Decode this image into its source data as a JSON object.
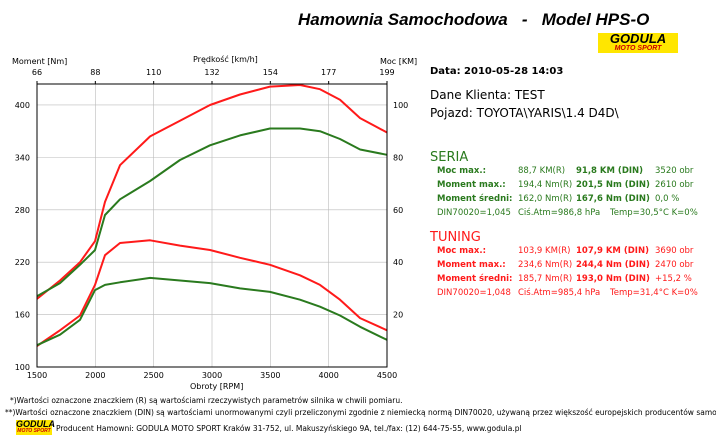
{
  "header": {
    "title": "Hamownia Samochodowa   -   Model HPS-O",
    "logo_top": "GODULA",
    "logo_bottom": "MOTO SPORT"
  },
  "info": {
    "date": "Data: 2010-05-28  14:03",
    "client": "Dane Klienta: TEST",
    "vehicle": "Pojazd: TOYOTA\\YARIS\\1.4 D4D\\"
  },
  "seria": {
    "title": "SERIA",
    "rows": [
      {
        "label": "Moc max.:",
        "r": "88,7 KM(R)",
        "din": "91,8 KM (DIN)",
        "extra": "3520 obr"
      },
      {
        "label": "Moment max.:",
        "r": "194,4 Nm(R)",
        "din": "201,5 Nm (DIN)",
        "extra": "2610 obr"
      },
      {
        "label": "Moment średni:",
        "r": "162,0 Nm(R)",
        "din": "167,6 Nm (DIN)",
        "extra": "0,0 %"
      }
    ],
    "din": "DIN70020=1,045",
    "atm": "Ciś.Atm=986,8 hPa",
    "temp": "Temp=30,5°C  K=0%"
  },
  "tuning": {
    "title": "TUNING",
    "rows": [
      {
        "label": "Moc max.:",
        "r": "103,9 KM(R)",
        "din": "107,9 KM (DIN)",
        "extra": "3690 obr"
      },
      {
        "label": "Moment max.:",
        "r": "234,6 Nm(R)",
        "din": "244,4 Nm (DIN)",
        "extra": "2470 obr"
      },
      {
        "label": "Moment średni:",
        "r": "185,7 Nm(R)",
        "din": "193,0 Nm (DIN)",
        "extra": "+15,2 %"
      }
    ],
    "din": "DIN70020=1,048",
    "atm": "Ciś.Atm=985,4 hPa",
    "temp": "Temp=31,4°C  K=0%"
  },
  "footer": {
    "note1": "*)Wartości oznaczone znaczkiem (R) są wartościami rzeczywistych parametrów silnika w chwili pomiaru.",
    "note2": "**)Wartości oznaczone znaczkiem (DIN) są wartościami unormowanymi czyli przeliczonymi zgodnie z niemiecką normą DIN70020, używaną przez większość europejskich producentów samochodów.",
    "producer": "Producent Hamowni: GODULA MOTO SPORT Kraków 31-752, ul. Makuszyńskiego 9A, tel./fax: (12) 644-75-55, www.godula.pl"
  },
  "colors": {
    "seria": "#2a7a1e",
    "tuning": "#ff1a1a"
  },
  "chart_data": {
    "type": "line",
    "xlabel": "Obroty [RPM]",
    "ylabel_left": "Moment [Nm]",
    "ylabel_right": "Moc [KM]",
    "top_label": "Prędkość [km/h]",
    "xlim": [
      1500,
      4500
    ],
    "ylim_left": [
      100,
      424
    ],
    "ylim_right": [
      0,
      108
    ],
    "x_ticks": [
      1500,
      2000,
      2500,
      3000,
      3500,
      4000,
      4500
    ],
    "top_ticks": [
      "66",
      "88",
      "110",
      "132",
      "154",
      "177",
      "199"
    ],
    "left_ticks": [
      100,
      160,
      220,
      280,
      340,
      400
    ],
    "right_ticks": [
      20,
      40,
      60,
      80,
      100
    ],
    "grid": true,
    "x": [
      1500,
      1697,
      1869,
      1997,
      2083,
      2211,
      2469,
      2726,
      2983,
      3240,
      3497,
      3754,
      3926,
      4097,
      4269,
      4500
    ],
    "series": [
      {
        "name": "Moc TUNING",
        "axis": "right",
        "color": "#ff1a1a",
        "values": [
          26,
          33,
          40,
          48,
          63,
          77,
          88,
          94,
          100,
          104,
          107,
          107.6,
          106,
          102,
          95,
          89.5
        ]
      },
      {
        "name": "Moc SERIA",
        "axis": "right",
        "color": "#2a7a1e",
        "values": [
          27,
          32,
          39,
          44.6,
          58,
          64,
          71,
          79,
          84.6,
          88.4,
          91,
          91,
          90,
          87,
          83,
          81
        ]
      },
      {
        "name": "Moment TUNING",
        "axis": "left",
        "color": "#ff1a1a",
        "values": [
          124,
          142,
          159,
          194,
          228,
          242,
          245,
          239,
          234,
          225,
          217,
          205,
          194,
          177,
          156,
          142
        ]
      },
      {
        "name": "Moment SERIA",
        "axis": "left",
        "color": "#2a7a1e",
        "values": [
          125,
          137,
          154,
          188,
          194,
          197,
          202,
          199,
          196,
          190,
          186,
          177,
          169,
          159,
          146,
          131
        ]
      }
    ]
  }
}
